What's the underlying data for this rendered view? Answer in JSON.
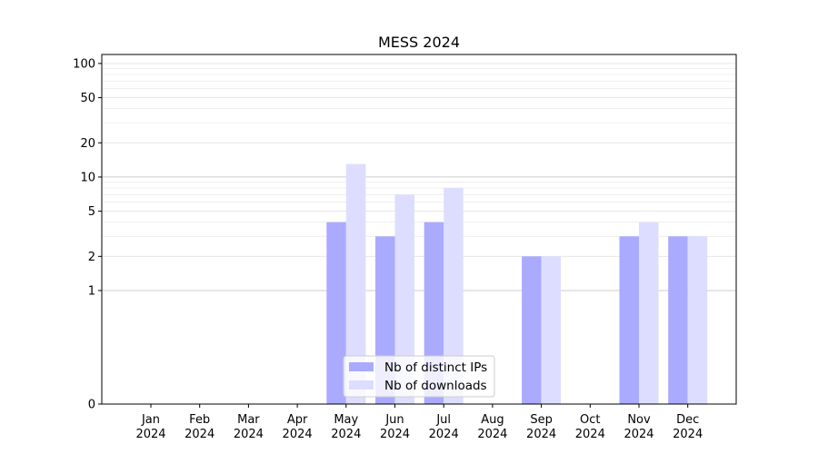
{
  "chart_data": {
    "type": "bar",
    "title": "MESS 2024",
    "xlabel": "",
    "ylabel": "",
    "y_scale": "symlog",
    "ylim": [
      0,
      120
    ],
    "yticks": [
      0,
      1,
      2,
      5,
      10,
      20,
      50,
      100
    ],
    "ytick_labels": [
      "0",
      "1",
      "2",
      "5",
      "10",
      "20",
      "50",
      "100"
    ],
    "grid": true,
    "legend_position": "bottom-center",
    "categories": [
      {
        "month": "Jan",
        "year": "2024"
      },
      {
        "month": "Feb",
        "year": "2024"
      },
      {
        "month": "Mar",
        "year": "2024"
      },
      {
        "month": "Apr",
        "year": "2024"
      },
      {
        "month": "May",
        "year": "2024"
      },
      {
        "month": "Jun",
        "year": "2024"
      },
      {
        "month": "Jul",
        "year": "2024"
      },
      {
        "month": "Aug",
        "year": "2024"
      },
      {
        "month": "Sep",
        "year": "2024"
      },
      {
        "month": "Oct",
        "year": "2024"
      },
      {
        "month": "Nov",
        "year": "2024"
      },
      {
        "month": "Dec",
        "year": "2024"
      }
    ],
    "series": [
      {
        "name": "Nb of distinct IPs",
        "color": "#aaaaff",
        "values": [
          0,
          0,
          0,
          0,
          4,
          3,
          4,
          0,
          2,
          0,
          3,
          3
        ]
      },
      {
        "name": "Nb of downloads",
        "color": "#ddddff",
        "values": [
          0,
          0,
          0,
          0,
          13,
          7,
          8,
          0,
          2,
          0,
          4,
          3
        ]
      }
    ]
  }
}
